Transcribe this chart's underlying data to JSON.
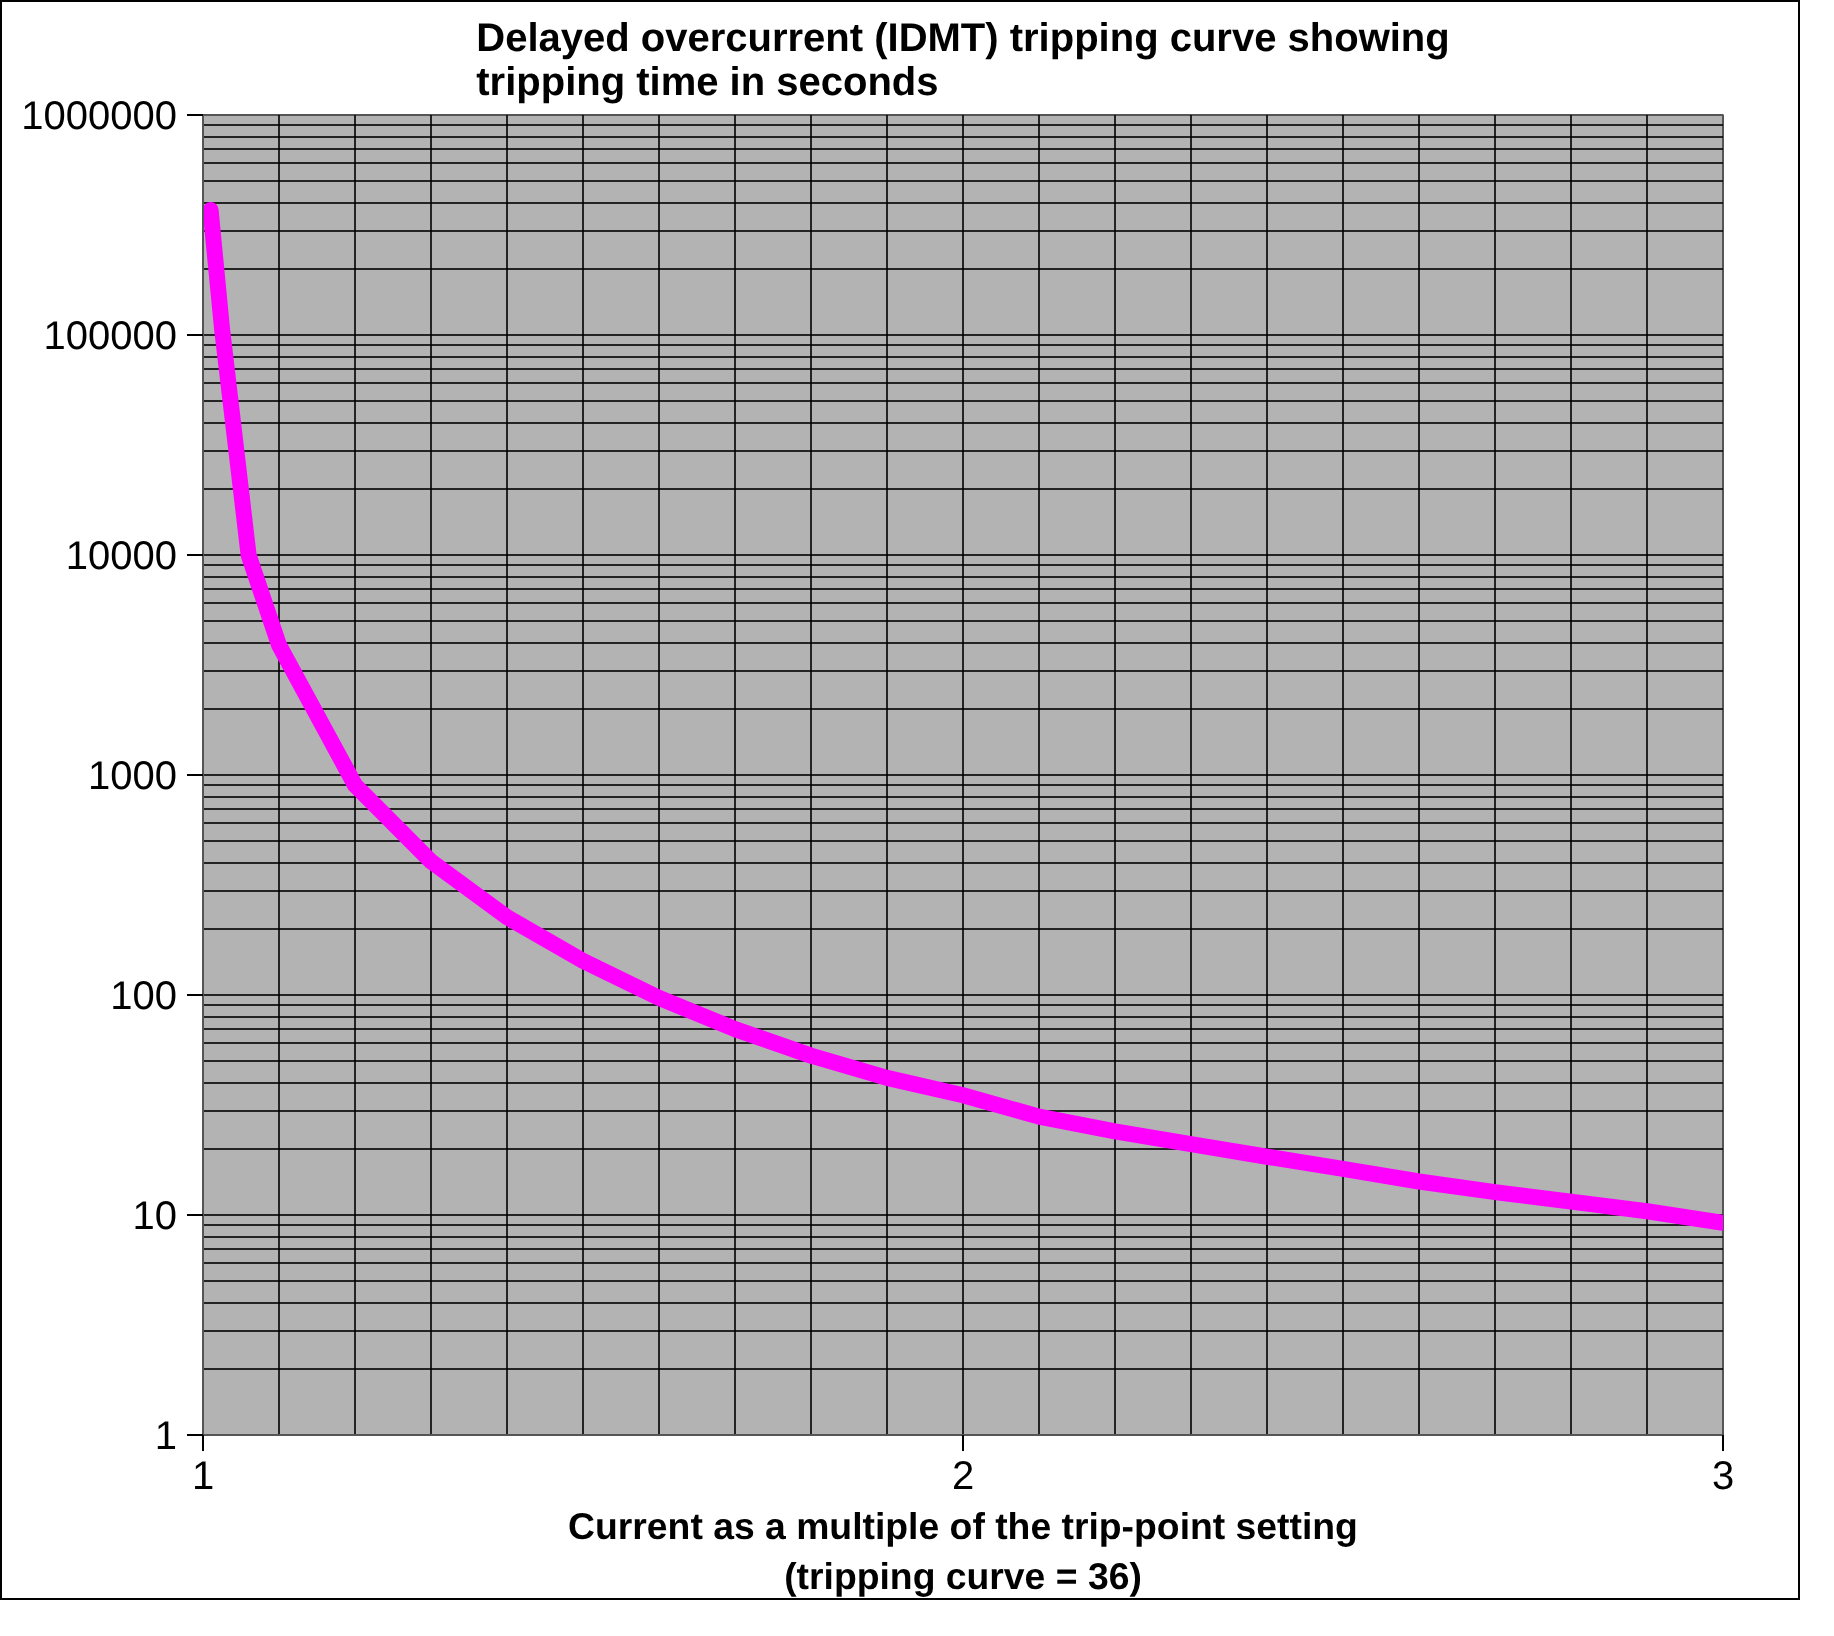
{
  "chart_data": {
    "type": "line",
    "title": "Delayed overcurrent (IDMT) tripping curve showing\ntripping time in seconds",
    "xlabel": "Current as a multiple of the trip-point setting\n(tripping curve = 36)",
    "x": [
      1.01,
      1.025,
      1.06,
      1.1,
      1.2,
      1.3,
      1.4,
      1.5,
      1.6,
      1.7,
      1.8,
      1.9,
      2.0,
      2.1,
      2.2,
      2.3,
      2.4,
      2.5,
      2.6,
      2.7,
      2.8,
      2.9,
      3.0
    ],
    "series": [
      {
        "color": "#ff00ff",
        "values": [
          370000,
          107000,
          10000,
          3900,
          900,
          405,
          226,
          143,
          97,
          70,
          53,
          42,
          35,
          28,
          24,
          21,
          18.4,
          16.2,
          14.2,
          12.7,
          11.5,
          10.4,
          9.2
        ]
      }
    ],
    "log": "y",
    "xlim": [
      1,
      3
    ],
    "ylim": [
      1,
      1000000
    ],
    "xticks": [
      1,
      2,
      3
    ],
    "yticks": [
      1,
      10,
      100,
      1000,
      10000,
      100000,
      1000000
    ],
    "grid": true,
    "marker": "none",
    "line_style": "solid"
  }
}
